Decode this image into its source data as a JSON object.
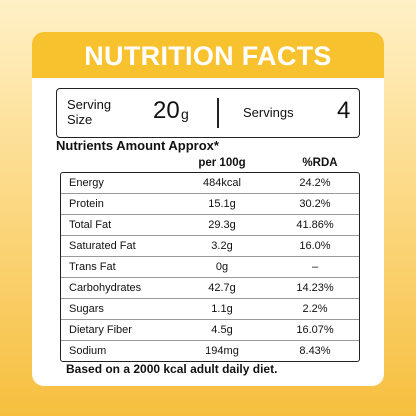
{
  "header": {
    "title": "NUTRITION FACTS"
  },
  "serving": {
    "size_label": "Serving Size",
    "size_value": "20",
    "size_unit": "g",
    "servings_label": "Servings",
    "servings_value": "4"
  },
  "nutrients": {
    "title": "Nutrients Amount Approx*",
    "columns": [
      "per 100g",
      "%RDA"
    ]
  },
  "table": {
    "rows": [
      [
        "Energy",
        "484kcal",
        "24.2%"
      ],
      [
        "Protein",
        "15.1g",
        "30.2%"
      ],
      [
        "Total Fat",
        "29.3g",
        "41.86%"
      ],
      [
        "Saturated Fat",
        "3.2g",
        "16.0%"
      ],
      [
        "Trans Fat",
        "0g",
        "–"
      ],
      [
        "Carbohydrates",
        "42.7g",
        "14.23%"
      ],
      [
        "Sugars",
        "1.1g",
        "2.2%"
      ],
      [
        "Dietary Fiber",
        "4.5g",
        "16.07%"
      ],
      [
        "Sodium",
        "194mg",
        "8.43%"
      ]
    ]
  },
  "footer": {
    "note": "Based on a 2000 kcal adult daily diet."
  }
}
